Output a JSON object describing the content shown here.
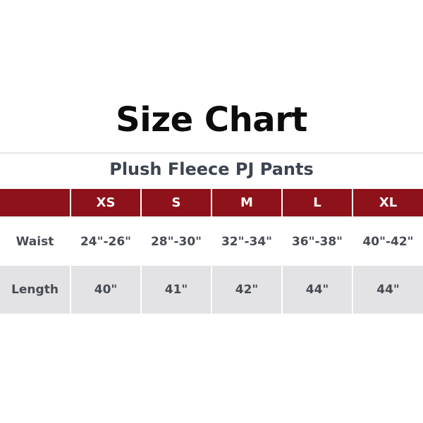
{
  "title": "Size Chart",
  "subtitle": "Plush Fleece PJ Pants",
  "colors": {
    "header_bg": "#8e1219",
    "alt_row_bg": "#e3e3e5",
    "text": "#474b53"
  },
  "table": {
    "headers": [
      "",
      "XS",
      "S",
      "M",
      "L",
      "XL"
    ],
    "rows": [
      {
        "label": "Waist",
        "values": [
          "24\"-26\"",
          "28\"-30\"",
          "32\"-34\"",
          "36\"-38\"",
          "40\"-42\""
        ]
      },
      {
        "label": "Length",
        "values": [
          "40\"",
          "41\"",
          "42\"",
          "44\"",
          "44\""
        ]
      }
    ]
  }
}
